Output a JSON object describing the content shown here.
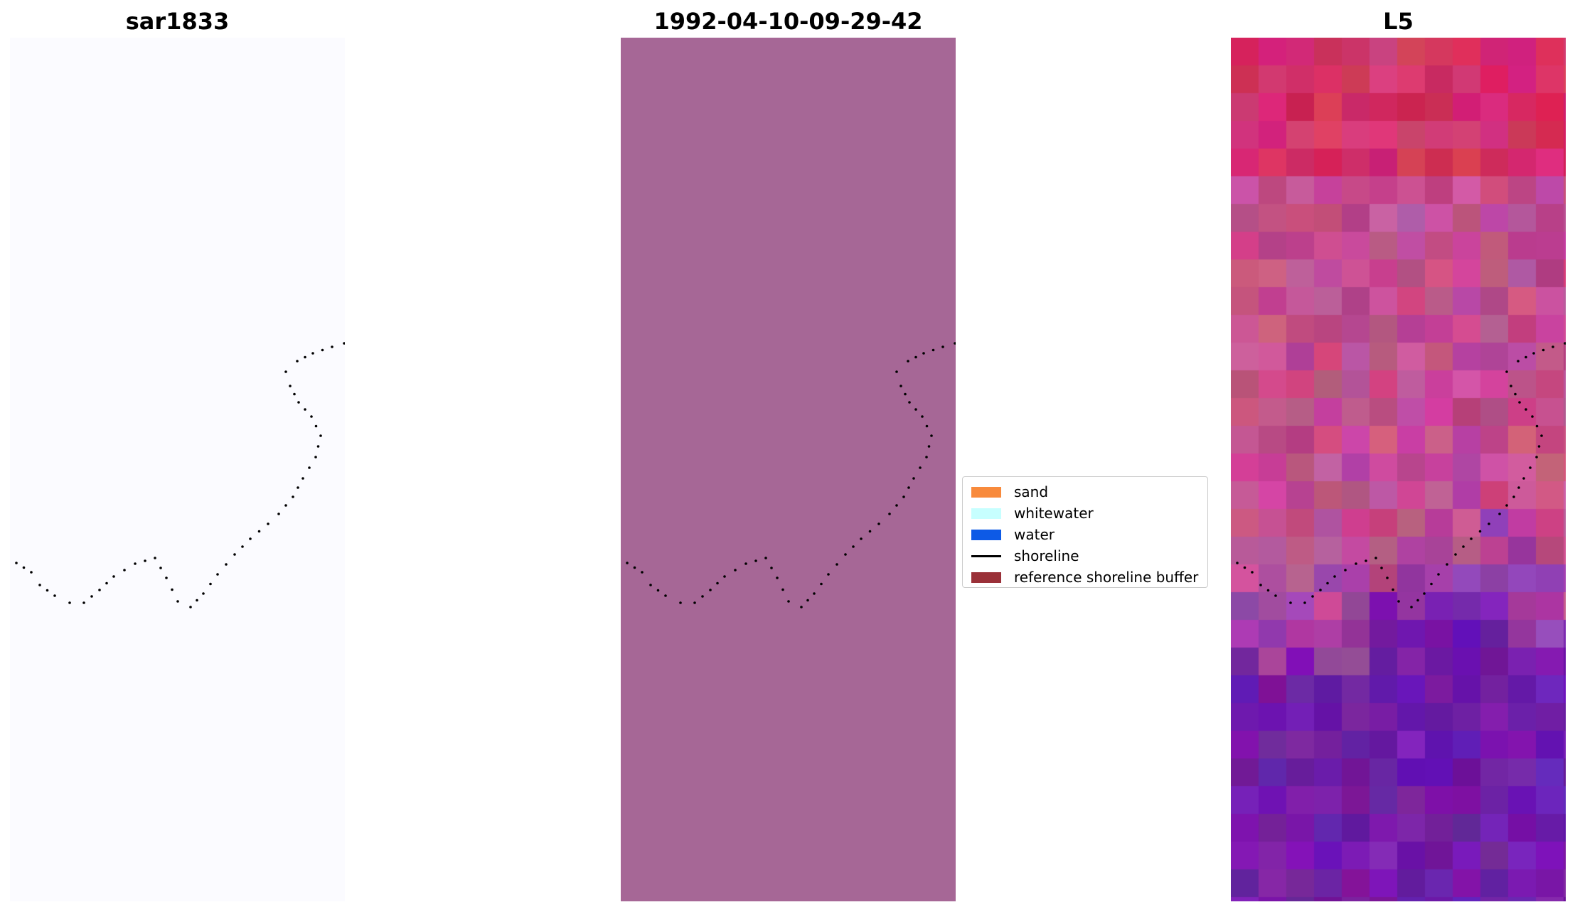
{
  "panels": [
    {
      "title": "sar1833"
    },
    {
      "title": "1992-04-10-09-29-42"
    },
    {
      "title": "L5"
    }
  ],
  "legend": {
    "items": [
      {
        "label": "sand",
        "color": "#f88a3c",
        "kind": "patch"
      },
      {
        "label": "whitewater",
        "color": "#c7ffff",
        "kind": "patch"
      },
      {
        "label": "water",
        "color": "#0d5ae6",
        "kind": "patch"
      },
      {
        "label": "shoreline",
        "color": "#000000",
        "kind": "line"
      },
      {
        "label": "reference shoreline buffer",
        "color": "#9a3038",
        "kind": "patch"
      }
    ]
  },
  "colors": {
    "panel1_background": "#fbfbff",
    "panel2_background": "#a66796",
    "shoreline_dots": "#000000"
  }
}
